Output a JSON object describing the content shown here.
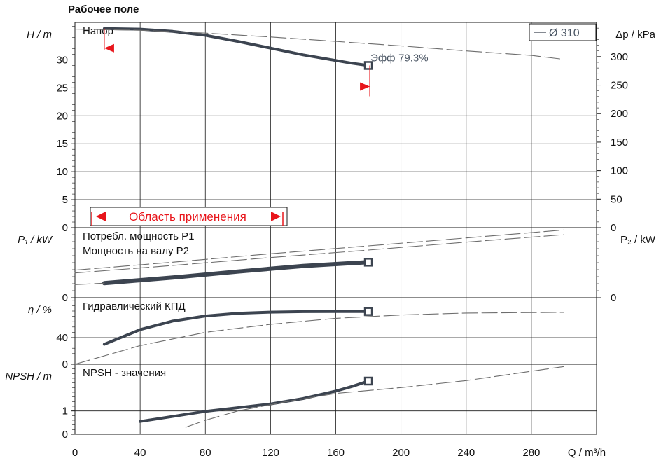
{
  "title": "Рабочее поле",
  "chart_data": {
    "type": "line",
    "title": "Рабочее поле",
    "xlabel": "Q / m³/h",
    "xlim": [
      0,
      320
    ],
    "xticks": [
      0,
      40,
      80,
      120,
      160,
      200,
      240,
      280
    ],
    "legend": {
      "label": "Ø 310",
      "position": "top-right"
    },
    "panels": [
      {
        "id": "head",
        "title": "Напор",
        "ylabel": "H / m",
        "ylabel_right": "Δp / kPa",
        "ylim": [
          0,
          36.7
        ],
        "yticks": [
          0,
          5,
          10,
          15,
          20,
          25,
          30
        ],
        "yticks_right": [
          0,
          50,
          100,
          150,
          200,
          250,
          300
        ],
        "series": [
          {
            "style": "solid",
            "x": [
              18,
              40,
              60,
              80,
              100,
              120,
              140,
              160,
              170,
              180
            ],
            "y": [
              35.6,
              35.5,
              35.1,
              34.4,
              33.3,
              32.1,
              30.9,
              29.9,
              29.4,
              29.0
            ]
          },
          {
            "style": "dashed",
            "x": [
              0,
              40,
              80,
              120,
              160,
              200,
              240,
              280,
              300
            ],
            "y": [
              35.5,
              35.3,
              34.8,
              34.1,
              33.3,
              32.5,
              31.6,
              30.8,
              30.1
            ]
          }
        ],
        "endpoint": {
          "x": 180,
          "y": 29.0
        },
        "annotations": [
          {
            "label": "Эфф",
            "value": "79.3%"
          }
        ],
        "range_label": "Область применения",
        "range": [
          18,
          180
        ]
      },
      {
        "id": "power",
        "title": "Потребл. мощность P1",
        "title2": "Мощность на валу P2",
        "ylabel": "P₁ / kW",
        "ylabel_right": "P₂ / kW",
        "ylim": [
          0,
          15
        ],
        "yticks": [
          0
        ],
        "yticks_right": [
          0
        ],
        "series": [
          {
            "style": "thick",
            "x": [
              18,
              60,
              100,
              140,
              180
            ],
            "y": [
              3.1,
              4.3,
              5.6,
              6.8,
              7.6
            ]
          },
          {
            "style": "dashed",
            "x": [
              0,
              60,
              120,
              180,
              240,
              300
            ],
            "y": [
              5.9,
              7.6,
              9.4,
              11.1,
              12.8,
              14.5
            ]
          },
          {
            "style": "dashed",
            "x": [
              0,
              60,
              120,
              180,
              240,
              300
            ],
            "y": [
              5.3,
              6.9,
              8.6,
              10.2,
              11.9,
              13.5
            ]
          },
          {
            "style": "dashed",
            "x": [
              0,
              18
            ],
            "y": [
              2.8,
              3.1
            ]
          }
        ],
        "endpoint": {
          "x": 180,
          "y": 7.6
        }
      },
      {
        "id": "efficiency",
        "title": "Гидравлический КПД",
        "ylabel": "η / %",
        "ylim": [
          0,
          100
        ],
        "yticks": [
          0,
          40
        ],
        "series": [
          {
            "style": "solid",
            "x": [
              18,
              40,
              60,
              80,
              100,
              120,
              140,
              160,
              180
            ],
            "y": [
              30,
              52,
              65,
              72.5,
              76.5,
              78.3,
              79.0,
              79.3,
              79.3
            ]
          },
          {
            "style": "dashed",
            "x": [
              0,
              40,
              80,
              120,
              160,
              200,
              240,
              300
            ],
            "y": [
              0,
              28,
              48,
              60,
              69,
              74,
              77,
              78
            ]
          }
        ],
        "endpoint": {
          "x": 180,
          "y": 79.3
        }
      },
      {
        "id": "npsh",
        "title": "NPSH - значения",
        "ylabel": "NPSH / m",
        "ylim": [
          0,
          3
        ],
        "yticks": [
          0,
          1
        ],
        "series": [
          {
            "style": "solid",
            "x": [
              40,
              80,
              120,
              140,
              160,
              170,
              180
            ],
            "y": [
              0.55,
              0.98,
              1.3,
              1.53,
              1.85,
              2.05,
              2.28
            ]
          },
          {
            "style": "dashed",
            "x": [
              68,
              80,
              100,
              130,
              160,
              200,
              240,
              300
            ],
            "y": [
              0.3,
              0.6,
              1.0,
              1.4,
              1.75,
              2.0,
              2.3,
              2.9
            ]
          }
        ],
        "endpoint": {
          "x": 180,
          "y": 2.28
        }
      }
    ]
  }
}
